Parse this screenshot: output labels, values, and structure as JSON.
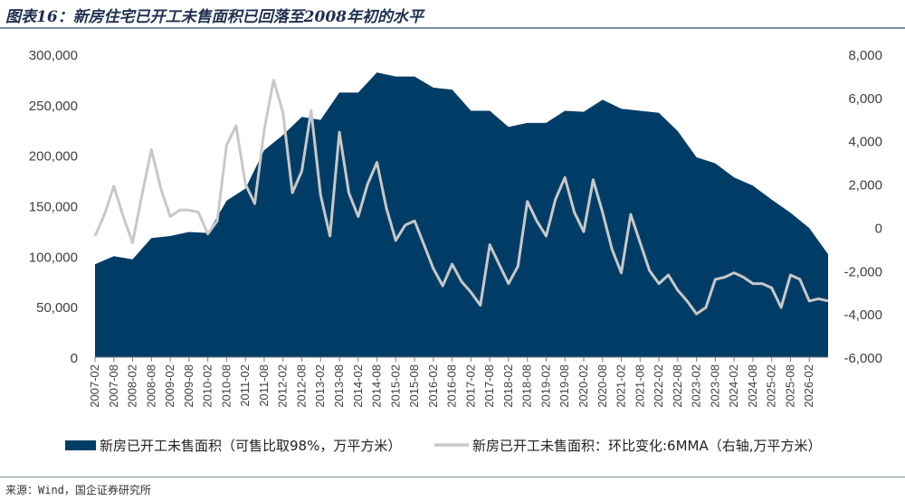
{
  "title": "图表16：新房住宅已开工未售面积已回落至2008年初的水平",
  "source": "来源：Wind，国企证券研究所",
  "colors": {
    "area": "#003d66",
    "line": "#c8c8c8"
  },
  "chart_data": {
    "type": "area+line",
    "left_axis": {
      "min": 0,
      "max": 300000,
      "ticks": [
        "0",
        "50,000",
        "100,000",
        "150,000",
        "200,000",
        "250,000",
        "300,000"
      ]
    },
    "right_axis": {
      "min": -6000,
      "max": 8000,
      "ticks": [
        "-6,000",
        "-4,000",
        "-2,000",
        "0",
        "2,000",
        "4,000",
        "6,000",
        "8,000"
      ]
    },
    "x_ticks": [
      "2007-02",
      "2007-08",
      "2008-02",
      "2008-08",
      "2009-02",
      "2009-08",
      "2010-02",
      "2010-08",
      "2011-02",
      "2011-08",
      "2012-02",
      "2012-08",
      "2013-02",
      "2013-08",
      "2014-02",
      "2014-08",
      "2015-02",
      "2015-08",
      "2016-02",
      "2016-08",
      "2017-02",
      "2017-08",
      "2018-02",
      "2018-08",
      "2019-02",
      "2019-08",
      "2020-02",
      "2020-08",
      "2021-02",
      "2021-08",
      "2022-02",
      "2022-08",
      "2023-02",
      "2023-08",
      "2024-02",
      "2024-08",
      "2025-02",
      "2025-08",
      "2026-02"
    ],
    "series": [
      {
        "name": "新房已开工未售面积（可售比取98%，万平方米）",
        "axis": "left",
        "kind": "area",
        "x": [
          "2007-02",
          "2007-08",
          "2008-02",
          "2008-08",
          "2009-02",
          "2009-08",
          "2010-02",
          "2010-08",
          "2011-02",
          "2011-08",
          "2012-02",
          "2012-08",
          "2013-02",
          "2013-08",
          "2014-02",
          "2014-08",
          "2015-02",
          "2015-08",
          "2016-02",
          "2016-08",
          "2017-02",
          "2017-08",
          "2018-02",
          "2018-08",
          "2019-02",
          "2019-08",
          "2020-02",
          "2020-08",
          "2021-02",
          "2021-08",
          "2022-02",
          "2022-08",
          "2023-02",
          "2023-08",
          "2024-02",
          "2024-08",
          "2025-02",
          "2025-08",
          "2026-02",
          "2026-08"
        ],
        "values": [
          92000,
          100000,
          97000,
          118000,
          120000,
          124000,
          123000,
          155000,
          167000,
          205000,
          220000,
          238000,
          235000,
          262000,
          262000,
          282000,
          278000,
          278000,
          267000,
          265000,
          244000,
          244000,
          228000,
          232000,
          232000,
          244000,
          243000,
          255000,
          246000,
          244000,
          242000,
          224000,
          198000,
          192000,
          178000,
          170000,
          156000,
          143000,
          128000,
          102000
        ]
      },
      {
        "name": "新房已开工未售面积：环比变化:6MMA（右轴,万平方米）",
        "axis": "right",
        "kind": "line",
        "x": [
          "2007-02",
          "2007-05",
          "2007-08",
          "2007-11",
          "2008-02",
          "2008-05",
          "2008-08",
          "2008-11",
          "2009-02",
          "2009-05",
          "2009-08",
          "2009-11",
          "2010-02",
          "2010-05",
          "2010-08",
          "2010-11",
          "2011-02",
          "2011-05",
          "2011-08",
          "2011-11",
          "2012-02",
          "2012-05",
          "2012-08",
          "2012-11",
          "2013-02",
          "2013-05",
          "2013-08",
          "2013-11",
          "2014-02",
          "2014-05",
          "2014-08",
          "2014-11",
          "2015-02",
          "2015-05",
          "2015-08",
          "2015-11",
          "2016-02",
          "2016-05",
          "2016-08",
          "2016-11",
          "2017-02",
          "2017-05",
          "2017-08",
          "2017-11",
          "2018-02",
          "2018-05",
          "2018-08",
          "2018-11",
          "2019-02",
          "2019-05",
          "2019-08",
          "2019-11",
          "2020-02",
          "2020-05",
          "2020-08",
          "2020-11",
          "2021-02",
          "2021-05",
          "2021-08",
          "2021-11",
          "2022-02",
          "2022-05",
          "2022-08",
          "2022-11",
          "2023-02",
          "2023-05",
          "2023-08",
          "2023-11",
          "2024-02",
          "2024-05",
          "2024-08",
          "2024-11",
          "2025-02",
          "2025-05",
          "2025-08",
          "2025-11",
          "2026-02",
          "2026-05",
          "2026-08"
        ],
        "values": [
          -400,
          600,
          1900,
          500,
          -700,
          1500,
          3600,
          1800,
          500,
          800,
          800,
          700,
          -300,
          300,
          3800,
          4700,
          2000,
          1100,
          4500,
          6800,
          5300,
          1600,
          2600,
          5400,
          1500,
          -400,
          4400,
          1600,
          500,
          2000,
          3000,
          900,
          -600,
          100,
          300,
          -800,
          -1900,
          -2700,
          -1700,
          -2500,
          -3000,
          -3600,
          -800,
          -1700,
          -2600,
          -1800,
          1200,
          300,
          -400,
          1300,
          2300,
          700,
          -200,
          2200,
          700,
          -1000,
          -2100,
          600,
          -700,
          -2000,
          -2600,
          -2200,
          -2900,
          -3400,
          -4000,
          -3700,
          -2400,
          -2300,
          -2100,
          -2300,
          -2600,
          -2600,
          -2800,
          -3700,
          -2200,
          -2400,
          -3400,
          -3300,
          -3400
        ]
      }
    ],
    "legend": "bottom"
  }
}
